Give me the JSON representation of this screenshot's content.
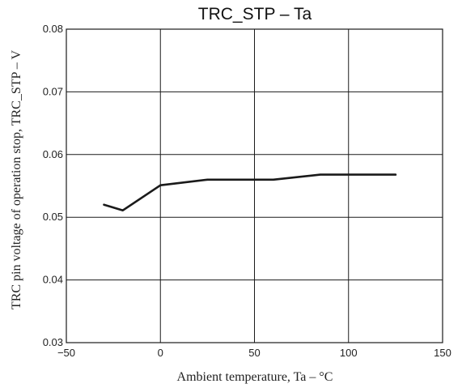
{
  "chart_data": {
    "type": "line",
    "title": "TRC_STP  –  Ta",
    "xlabel": "Ambient temperature,  Ta  –  °C",
    "ylabel": "TRC pin voltage of operation stop, TRC_STP  –  V",
    "xlim": [
      -50,
      150
    ],
    "ylim": [
      0.03,
      0.08
    ],
    "x_ticks": [
      "−50",
      "0",
      "50",
      "100",
      "150"
    ],
    "x_tick_values": [
      -50,
      0,
      50,
      100,
      150
    ],
    "y_ticks": [
      "0.03",
      "0.04",
      "0.05",
      "0.06",
      "0.07",
      "0.08"
    ],
    "y_tick_values": [
      0.03,
      0.04,
      0.05,
      0.06,
      0.07,
      0.08
    ],
    "grid": true,
    "series": [
      {
        "x": [
          -30,
          -20,
          0,
          25,
          60,
          85,
          125
        ],
        "y": [
          0.052,
          0.0511,
          0.0551,
          0.056,
          0.056,
          0.0568,
          0.0568
        ]
      }
    ]
  }
}
